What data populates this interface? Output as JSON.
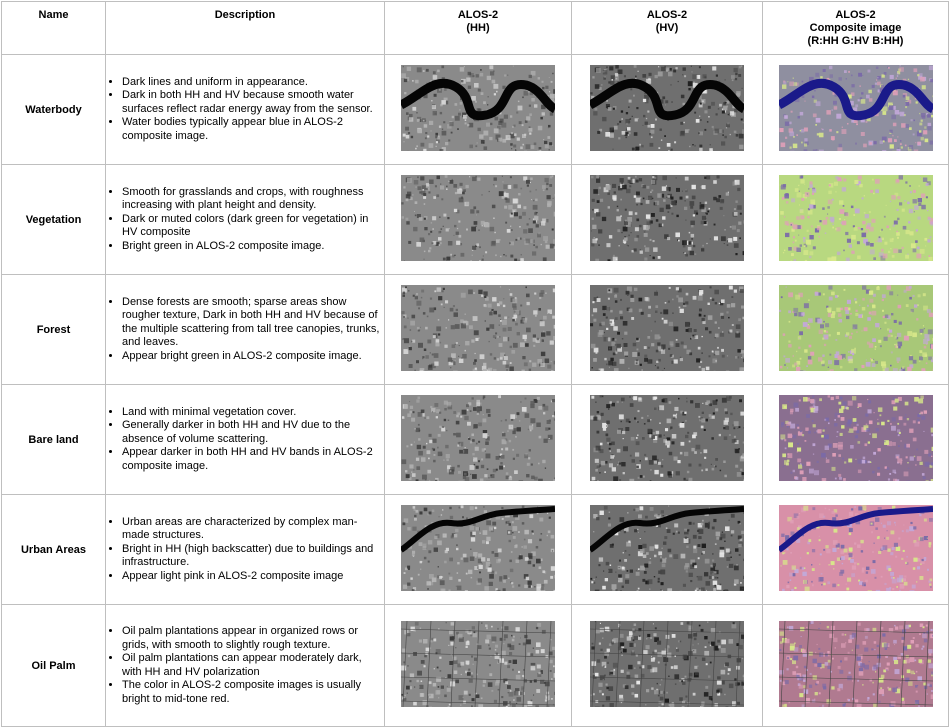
{
  "headers": {
    "name": "Name",
    "description": "Description",
    "hh": [
      "ALOS-2",
      "(HH)"
    ],
    "hv": [
      "ALOS-2",
      "(HV)"
    ],
    "composite": [
      "ALOS-2",
      "Composite image",
      "(R:HH G:HV B:HH)"
    ]
  },
  "rows": [
    {
      "name": "Waterbody",
      "bullets": [
        "Dark lines and uniform in appearance.",
        "Dark in both HH and HV because smooth water surfaces reflect radar energy away from the sensor.",
        "Water bodies typically appear blue in  ALOS-2 composite image."
      ],
      "images": {
        "hh": "waterbody HH radar image",
        "hv": "waterbody HV radar image",
        "composite": "waterbody composite image"
      }
    },
    {
      "name": "Vegetation",
      "bullets": [
        "Smooth for grasslands and crops, with roughness increasing with plant height and density.",
        "Dark or muted colors (dark green for vegetation) in HV composite",
        "Bright green in ALOS-2 composite image."
      ],
      "images": {
        "hh": "vegetation HH radar image",
        "hv": "vegetation HV radar image",
        "composite": "vegetation composite image"
      }
    },
    {
      "name": "Forest",
      "bullets": [
        "Dense forests are smooth; sparse areas show rougher texture, Dark in both HH and HV because of the multiple scattering from tall tree canopies, trunks, and leaves.",
        "Appear bright green in ALOS-2 composite image."
      ],
      "images": {
        "hh": "forest HH radar image",
        "hv": "forest HV radar image",
        "composite": "forest composite image"
      }
    },
    {
      "name": "Bare land",
      "bullets": [
        "Land with minimal vegetation cover.",
        "Generally darker in both HH and HV due to the absence of volume scattering.",
        "Appear darker in both HH and HV bands in  ALOS-2 composite image."
      ],
      "images": {
        "hh": "bare land HH radar image",
        "hv": "bare land HV radar image",
        "composite": "bare land composite image"
      }
    },
    {
      "name": "Urban Areas",
      "bullets": [
        "Urban areas are characterized by complex man-made structures.",
        "Bright in HH (high backscatter) due to buildings and infrastructure.",
        "Appear light pink  in ALOS-2 composite image"
      ],
      "images": {
        "hh": "urban HH radar image",
        "hv": "urban HV radar image",
        "composite": "urban composite image"
      }
    },
    {
      "name": "Oil Palm",
      "bullets": [
        "Oil palm plantations appear in organized rows or grids, with smooth to slightly rough texture.",
        "Oil palm plantations can appear moderately dark, with HH and HV  polarization",
        "The color in ALOS-2 composite images is usually bright to mid-tone red."
      ],
      "images": {
        "hh": "oil palm HH radar image",
        "hv": "oil palm HV radar image",
        "composite": "oil palm composite image"
      }
    }
  ]
}
